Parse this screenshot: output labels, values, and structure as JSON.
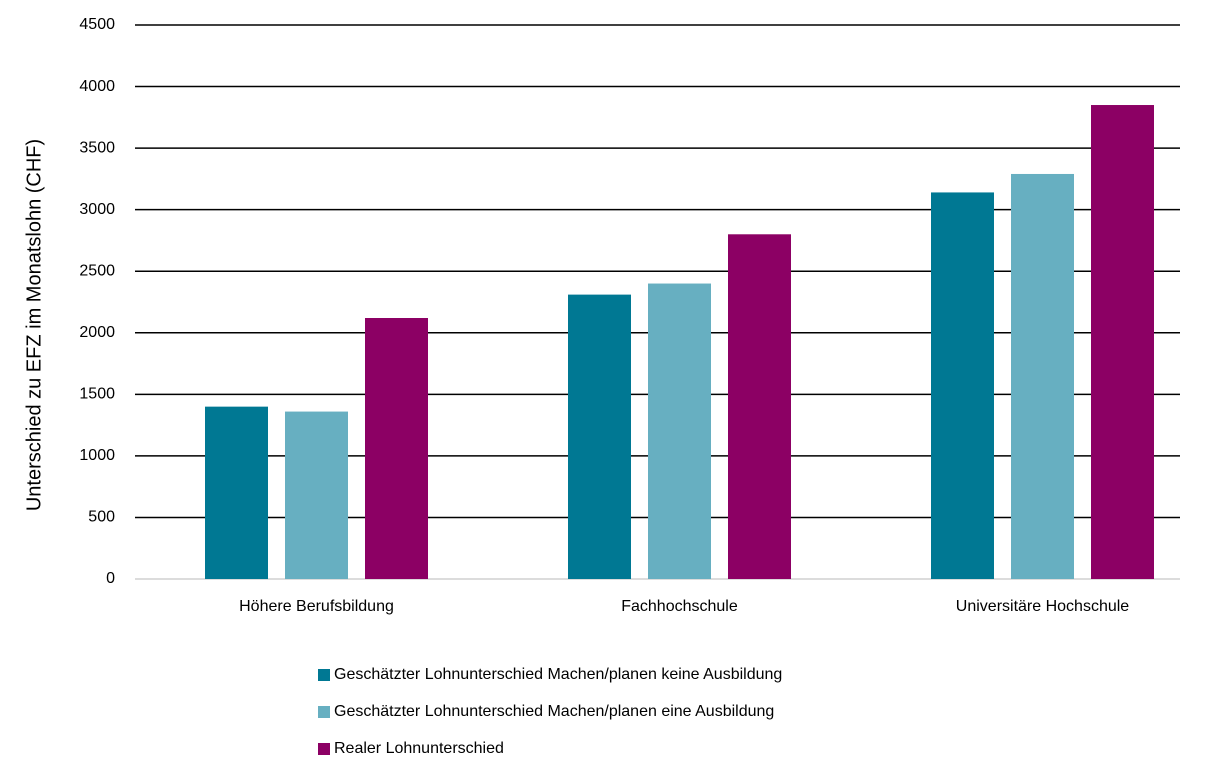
{
  "chart_data": {
    "type": "bar",
    "y_label": "Unterschied zu EFZ im Monatslohn (CHF)",
    "categories": [
      "Höhere Berufsbildung",
      "Fachhochschule",
      "Universitäre Hochschule"
    ],
    "series": [
      {
        "name": "Geschätzter Lohnunterschied Machen/planen keine Ausbildung",
        "color": "#007893",
        "values": [
          1400,
          2310,
          3140
        ]
      },
      {
        "name": "Geschätzter Lohnunterschied Machen/planen eine Ausbildung",
        "color": "#67afc1",
        "values": [
          1360,
          2400,
          3290
        ]
      },
      {
        "name": "Realer Lohnunterschied",
        "color": "#8c0064",
        "values": [
          2120,
          2800,
          3850
        ]
      }
    ],
    "ylim": [
      0,
      4500
    ],
    "yticks": [
      0,
      500,
      1000,
      1500,
      2000,
      2500,
      3000,
      3500,
      4000,
      4500
    ],
    "grid": true,
    "legend": "bottom"
  }
}
